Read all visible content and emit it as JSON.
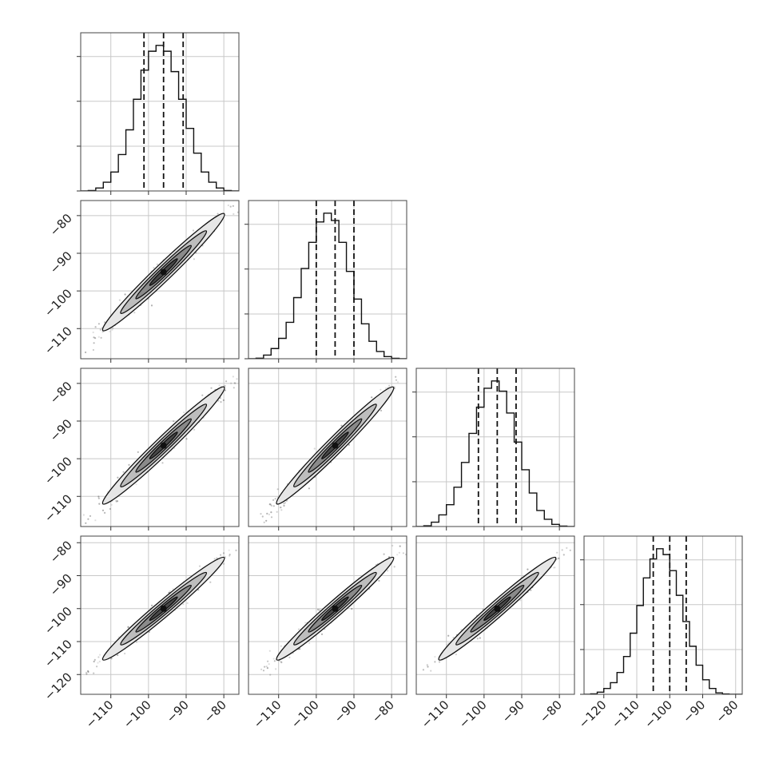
{
  "chart_data": {
    "type": "corner",
    "ndim": 4,
    "grid": true,
    "quantile_lines": "dashed",
    "colors": {
      "line": "#111111",
      "points": "#555555",
      "contour_fill": [
        "#e6e6e6",
        "#bdbdbd",
        "#8a8a8a",
        "#4a4a4a"
      ],
      "grid": "#c8c8c8"
    },
    "axes_ranges": [
      [
        -118,
        -76
      ],
      [
        -118,
        -76
      ],
      [
        -118,
        -76
      ],
      [
        -126,
        -78
      ]
    ],
    "x_ticks": [
      [
        -110,
        -100,
        -90,
        -80
      ],
      [
        -110,
        -100,
        -90,
        -80
      ],
      [
        -110,
        -100,
        -90,
        -80
      ],
      [
        -120,
        -110,
        -100,
        -90,
        -80
      ]
    ],
    "y_ticks": [
      null,
      [
        -110,
        -100,
        -90,
        -80
      ],
      [
        -110,
        -100,
        -90,
        -80
      ],
      [
        -120,
        -110,
        -100,
        -90,
        -80
      ]
    ],
    "tick_label_format": "−",
    "histograms": [
      {
        "bin_edges": [
          -118,
          -116,
          -114,
          -112,
          -110,
          -108,
          -106,
          -104,
          -102,
          -100,
          -98,
          -96,
          -94,
          -92,
          -90,
          -88,
          -86,
          -84,
          -82,
          -80,
          -78,
          -76
        ],
        "counts": [
          0.0,
          0.003,
          0.02,
          0.06,
          0.13,
          0.25,
          0.42,
          0.63,
          0.83,
          0.96,
          1.0,
          0.96,
          0.82,
          0.63,
          0.43,
          0.26,
          0.13,
          0.06,
          0.02,
          0.003,
          0.0
        ],
        "quantiles": [
          -101.2,
          -96,
          -90.8
        ]
      },
      {
        "bin_edges": [
          -118,
          -116,
          -114,
          -112,
          -110,
          -108,
          -106,
          -104,
          -102,
          -100,
          -98,
          -96,
          -94,
          -92,
          -90,
          -88,
          -86,
          -84,
          -82,
          -80,
          -78,
          -76
        ],
        "counts": [
          0.0,
          0.004,
          0.025,
          0.07,
          0.14,
          0.25,
          0.42,
          0.62,
          0.8,
          0.94,
          1.0,
          0.95,
          0.8,
          0.6,
          0.41,
          0.24,
          0.12,
          0.05,
          0.015,
          0.003,
          0.0
        ],
        "quantiles": [
          -100,
          -95,
          -90
        ]
      },
      {
        "bin_edges": [
          -118,
          -116,
          -114,
          -112,
          -110,
          -108,
          -106,
          -104,
          -102,
          -100,
          -98,
          -96,
          -94,
          -92,
          -90,
          -88,
          -86,
          -84,
          -82,
          -80,
          -78,
          -76
        ],
        "counts": [
          0.0,
          0.005,
          0.03,
          0.08,
          0.15,
          0.27,
          0.44,
          0.64,
          0.82,
          0.95,
          1.0,
          0.93,
          0.78,
          0.58,
          0.39,
          0.23,
          0.11,
          0.05,
          0.015,
          0.003,
          0.0
        ],
        "quantiles": [
          -101.5,
          -96.5,
          -91.5
        ]
      },
      {
        "bin_edges": [
          -126,
          -124,
          -122,
          -120,
          -118,
          -116,
          -114,
          -112,
          -110,
          -108,
          -106,
          -104,
          -102,
          -100,
          -98,
          -96,
          -94,
          -92,
          -90,
          -88,
          -86,
          -84,
          -82,
          -80,
          -78
        ],
        "counts": [
          0.0,
          0.003,
          0.015,
          0.04,
          0.08,
          0.15,
          0.26,
          0.42,
          0.61,
          0.8,
          0.93,
          1.0,
          0.96,
          0.85,
          0.68,
          0.5,
          0.33,
          0.2,
          0.1,
          0.04,
          0.01,
          0.002,
          0.0,
          0.0
        ],
        "quantiles": [
          -105,
          -100,
          -95
        ]
      }
    ]
  }
}
